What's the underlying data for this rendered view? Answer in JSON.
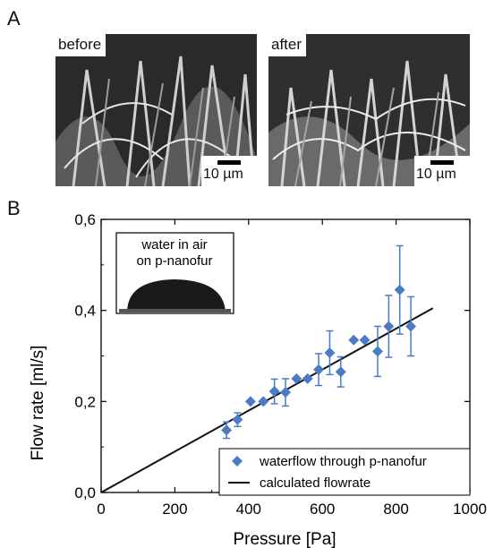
{
  "panels": {
    "a_letter": "A",
    "b_letter": "B"
  },
  "images": {
    "before_label": "before",
    "after_label": "after",
    "scale_label": "10 µm"
  },
  "chart_data": {
    "type": "scatter",
    "xlabel": "Pressure [Pa]",
    "ylabel": "Flow rate [ml/s]",
    "xlim": [
      0,
      1000
    ],
    "ylim": [
      0,
      0.6
    ],
    "x_ticks": [
      0,
      200,
      400,
      600,
      800,
      1000
    ],
    "y_ticks": [
      "0,0",
      "0,2",
      "0,4",
      "0,6"
    ],
    "y_tick_values": [
      0,
      0.2,
      0.4,
      0.6
    ],
    "series": [
      {
        "name": "waterflow through p-nanofur",
        "kind": "scatter-errorbar",
        "color": "#4a7cc4",
        "points": [
          {
            "x": 340,
            "y": 0.137,
            "err": 0.018
          },
          {
            "x": 370,
            "y": 0.16,
            "err": 0.015
          },
          {
            "x": 405,
            "y": 0.2,
            "err": 0.0
          },
          {
            "x": 440,
            "y": 0.2,
            "err": 0.0
          },
          {
            "x": 470,
            "y": 0.222,
            "err": 0.027
          },
          {
            "x": 500,
            "y": 0.22,
            "err": 0.03
          },
          {
            "x": 530,
            "y": 0.25,
            "err": 0.0
          },
          {
            "x": 560,
            "y": 0.25,
            "err": 0.0
          },
          {
            "x": 590,
            "y": 0.27,
            "err": 0.035
          },
          {
            "x": 620,
            "y": 0.307,
            "err": 0.048
          },
          {
            "x": 650,
            "y": 0.265,
            "err": 0.033
          },
          {
            "x": 685,
            "y": 0.335,
            "err": 0.0
          },
          {
            "x": 715,
            "y": 0.335,
            "err": 0.0
          },
          {
            "x": 750,
            "y": 0.31,
            "err": 0.055
          },
          {
            "x": 780,
            "y": 0.365,
            "err": 0.068
          },
          {
            "x": 810,
            "y": 0.445,
            "err": 0.097
          },
          {
            "x": 840,
            "y": 0.365,
            "err": 0.065
          }
        ]
      },
      {
        "name": "calculated flowrate",
        "kind": "line",
        "color": "#111111",
        "x": [
          0,
          900
        ],
        "y": [
          0,
          0.405
        ]
      }
    ],
    "legend_position": "bottom-right",
    "inset": {
      "line1": "water in air",
      "line2": "on p-nanofur"
    }
  }
}
